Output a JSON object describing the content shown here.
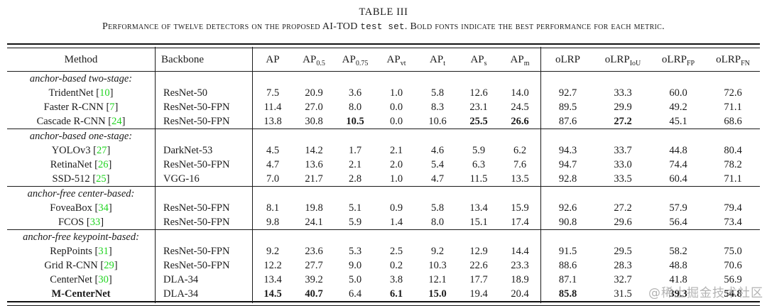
{
  "page": {
    "title": "TABLE III",
    "caption": {
      "part1": "Performance of twelve detectors on the proposed AI-TOD ",
      "mono": "test set",
      "part2": ". Bold fonts indicate the best performance for each metric."
    },
    "watermark": "@稀土掘金技术社区"
  },
  "colors": {
    "citation_green": "#21d421",
    "watermark_gray": "#a6a6a6",
    "rule_black": "#1b1b1b"
  },
  "table": {
    "header": {
      "method": "Method",
      "backbone": "Backbone",
      "metrics": [
        {
          "base": "AP",
          "sub": ""
        },
        {
          "base": "AP",
          "sub": "0.5"
        },
        {
          "base": "AP",
          "sub": "0.75"
        },
        {
          "base": "AP",
          "sub": "vt"
        },
        {
          "base": "AP",
          "sub": "t"
        },
        {
          "base": "AP",
          "sub": "s"
        },
        {
          "base": "AP",
          "sub": "m"
        },
        {
          "base": "oLRP",
          "sub": ""
        },
        {
          "base": "oLRP",
          "sub": "IoU"
        },
        {
          "base": "oLRP",
          "sub": "FP"
        },
        {
          "base": "oLRP",
          "sub": "FN"
        }
      ]
    },
    "sections": [
      {
        "group": "anchor-based two-stage:",
        "rows": [
          {
            "method": "TridentNet",
            "cite": "10",
            "backbone": "ResNet-50",
            "values": [
              "7.5",
              "20.9",
              "3.6",
              "1.0",
              "5.8",
              "12.6",
              "14.0",
              "92.7",
              "33.3",
              "60.0",
              "72.6"
            ],
            "bold": []
          },
          {
            "method": "Faster R-CNN",
            "cite": "7",
            "backbone": "ResNet-50-FPN",
            "values": [
              "11.4",
              "27.0",
              "8.0",
              "0.0",
              "8.3",
              "23.1",
              "24.5",
              "89.5",
              "29.9",
              "49.2",
              "71.1"
            ],
            "bold": []
          },
          {
            "method": "Cascade R-CNN",
            "cite": "24",
            "backbone": "ResNet-50-FPN",
            "values": [
              "13.8",
              "30.8",
              "10.5",
              "0.0",
              "10.6",
              "25.5",
              "26.6",
              "87.6",
              "27.2",
              "45.1",
              "68.6"
            ],
            "bold": [
              2,
              5,
              6,
              8
            ]
          }
        ]
      },
      {
        "group": "anchor-based one-stage:",
        "rows": [
          {
            "method": "YOLOv3",
            "cite": "27",
            "backbone": "DarkNet-53",
            "values": [
              "4.5",
              "14.2",
              "1.7",
              "2.1",
              "4.6",
              "5.9",
              "6.2",
              "94.3",
              "33.7",
              "44.8",
              "80.4"
            ],
            "bold": []
          },
          {
            "method": "RetinaNet",
            "cite": "26",
            "backbone": "ResNet-50-FPN",
            "values": [
              "4.7",
              "13.6",
              "2.1",
              "2.0",
              "5.4",
              "6.3",
              "7.6",
              "94.7",
              "33.0",
              "74.4",
              "78.2"
            ],
            "bold": []
          },
          {
            "method": "SSD-512",
            "cite": "25",
            "backbone": "VGG-16",
            "values": [
              "7.0",
              "21.7",
              "2.8",
              "1.0",
              "4.7",
              "11.5",
              "13.5",
              "92.8",
              "33.5",
              "60.4",
              "71.1"
            ],
            "bold": []
          }
        ]
      },
      {
        "group": "anchor-free center-based:",
        "rows": [
          {
            "method": "FoveaBox",
            "cite": "34",
            "backbone": "ResNet-50-FPN",
            "values": [
              "8.1",
              "19.8",
              "5.1",
              "0.9",
              "5.8",
              "13.4",
              "15.9",
              "92.6",
              "27.2",
              "57.9",
              "79.4"
            ],
            "bold": []
          },
          {
            "method": "FCOS",
            "cite": "33",
            "backbone": "ResNet-50-FPN",
            "values": [
              "9.8",
              "24.1",
              "5.9",
              "1.4",
              "8.0",
              "15.1",
              "17.4",
              "90.8",
              "29.6",
              "56.4",
              "73.4"
            ],
            "bold": []
          }
        ]
      },
      {
        "group": "anchor-free keypoint-based:",
        "rows": [
          {
            "method": "RepPoints",
            "cite": "31",
            "backbone": "ResNet-50-FPN",
            "values": [
              "9.2",
              "23.6",
              "5.3",
              "2.5",
              "9.2",
              "12.9",
              "14.4",
              "91.5",
              "29.5",
              "58.2",
              "75.0"
            ],
            "bold": []
          },
          {
            "method": "Grid R-CNN",
            "cite": "29",
            "backbone": "ResNet-50-FPN",
            "values": [
              "12.2",
              "27.7",
              "9.0",
              "0.2",
              "10.3",
              "22.6",
              "23.3",
              "88.6",
              "28.3",
              "48.8",
              "70.6"
            ],
            "bold": []
          },
          {
            "method": "CenterNet",
            "cite": "30",
            "backbone": "DLA-34",
            "values": [
              "13.4",
              "39.2",
              "5.0",
              "3.8",
              "12.1",
              "17.7",
              "18.9",
              "87.1",
              "32.7",
              "41.8",
              "56.9"
            ],
            "bold": []
          },
          {
            "method": "M-CenterNet",
            "cite": null,
            "method_bold": true,
            "backbone": "DLA-34",
            "values": [
              "14.5",
              "40.7",
              "6.4",
              "6.1",
              "15.0",
              "19.4",
              "20.4",
              "85.8",
              "31.5",
              "39.3",
              "54.8"
            ],
            "bold": [
              0,
              1,
              3,
              4,
              7,
              9,
              10
            ]
          }
        ]
      }
    ]
  }
}
